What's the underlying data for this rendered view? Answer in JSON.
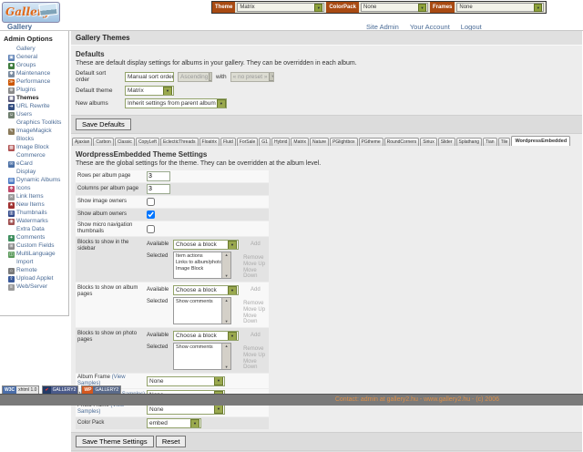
{
  "header": {
    "logo_text": "Gallery",
    "theme_bar": {
      "theme_label": "Theme",
      "theme_value": "Matrix",
      "colorpack_label": "ColorPack",
      "colorpack_value": "None",
      "frames_label": "Frames",
      "frames_value": "None"
    },
    "breadcrumb": "Gallery",
    "links": [
      "Site Admin",
      "Your Account",
      "Logout"
    ]
  },
  "sidebar": {
    "title": "Admin Options",
    "entries": [
      {
        "t": "g",
        "label": "Gallery",
        "name": "sidebar-group-gallery",
        "inter": "false"
      },
      {
        "t": "i",
        "label": "General",
        "name": "sidebar-item-general",
        "icon": "general-icon",
        "glyph": "▣",
        "color": "#5b7fb4",
        "inter": "true"
      },
      {
        "t": "i",
        "label": "Groups",
        "name": "sidebar-item-groups",
        "icon": "groups-icon",
        "glyph": "☻",
        "color": "#3f7d3f",
        "inter": "true"
      },
      {
        "t": "i",
        "label": "Maintenance",
        "name": "sidebar-item-maintenance",
        "icon": "maintenance-icon",
        "glyph": "✱",
        "color": "#7a8ba0",
        "inter": "true"
      },
      {
        "t": "i",
        "label": "Performance",
        "name": "sidebar-item-performance",
        "icon": "performance-icon",
        "glyph": "≫",
        "color": "#cc5500",
        "inter": "true"
      },
      {
        "t": "i",
        "label": "Plugins",
        "name": "sidebar-item-plugins",
        "icon": "plugins-icon",
        "glyph": "⊕",
        "color": "#8a8a8a",
        "inter": "true"
      },
      {
        "t": "i",
        "label": "Themes",
        "name": "sidebar-item-themes",
        "icon": "themes-icon",
        "glyph": "▦",
        "color": "#555577",
        "active": true,
        "inter": "true"
      },
      {
        "t": "i",
        "label": "URL Rewrite",
        "name": "sidebar-item-url-rewrite",
        "icon": "url-rewrite-icon",
        "glyph": "➔",
        "color": "#334d80",
        "inter": "true"
      },
      {
        "t": "i",
        "label": "Users",
        "name": "sidebar-item-users",
        "icon": "users-icon",
        "glyph": "☺",
        "color": "#6f7f6f",
        "inter": "true"
      },
      {
        "t": "g",
        "label": "Graphics Toolkits",
        "name": "sidebar-group-graphics-toolkits",
        "inter": "false"
      },
      {
        "t": "i",
        "label": "ImageMagick",
        "name": "sidebar-item-imagemagick",
        "icon": "imagemagick-icon",
        "glyph": "✎",
        "color": "#8a7a5a",
        "inter": "true"
      },
      {
        "t": "g",
        "label": "Blocks",
        "name": "sidebar-group-blocks",
        "inter": "false"
      },
      {
        "t": "i",
        "label": "Image Block",
        "name": "sidebar-item-image-block",
        "icon": "image-block-icon",
        "glyph": "▩",
        "color": "#b05050",
        "inter": "true"
      },
      {
        "t": "g",
        "label": "Commerce",
        "name": "sidebar-group-commerce",
        "inter": "false"
      },
      {
        "t": "i",
        "label": "eCard",
        "name": "sidebar-item-ecard",
        "icon": "ecard-icon",
        "glyph": "✉",
        "color": "#4a6fa5",
        "inter": "true"
      },
      {
        "t": "g",
        "label": "Display",
        "name": "sidebar-group-display",
        "inter": "false"
      },
      {
        "t": "i",
        "label": "Dynamic Albums",
        "name": "sidebar-item-dynamic-albums",
        "icon": "dynamic-albums-icon",
        "glyph": "▤",
        "color": "#4a79c4",
        "inter": "true"
      },
      {
        "t": "i",
        "label": "Icons",
        "name": "sidebar-item-icons",
        "icon": "icons-icon",
        "glyph": "❖",
        "color": "#c04a6a",
        "inter": "true"
      },
      {
        "t": "i",
        "label": "Link Items",
        "name": "sidebar-item-link-items",
        "icon": "link-items-icon",
        "glyph": "∞",
        "color": "#9a9a9a",
        "inter": "true"
      },
      {
        "t": "i",
        "label": "New Items",
        "name": "sidebar-item-new-items",
        "icon": "new-items-icon",
        "glyph": "★",
        "color": "#a03030",
        "inter": "true"
      },
      {
        "t": "i",
        "label": "Thumbnails",
        "name": "sidebar-item-thumbnails",
        "icon": "thumbnails-icon",
        "glyph": "▥",
        "color": "#30488a",
        "inter": "true"
      },
      {
        "t": "i",
        "label": "Watermarks",
        "name": "sidebar-item-watermarks",
        "icon": "watermarks-icon",
        "glyph": "◉",
        "color": "#a05050",
        "inter": "true"
      },
      {
        "t": "g",
        "label": "Extra Data",
        "name": "sidebar-group-extra-data",
        "inter": "false"
      },
      {
        "t": "i",
        "label": "Comments",
        "name": "sidebar-item-comments",
        "icon": "comments-icon",
        "glyph": "✦",
        "color": "#3f8f5f",
        "inter": "true"
      },
      {
        "t": "i",
        "label": "Custom Fields",
        "name": "sidebar-item-custom-fields",
        "icon": "custom-fields-icon",
        "glyph": "⊞",
        "color": "#8a8a8a",
        "inter": "true"
      },
      {
        "t": "i",
        "label": "MultiLanguage",
        "name": "sidebar-item-multilanguage",
        "icon": "multilanguage-icon",
        "glyph": "◫",
        "color": "#5a9a5a",
        "inter": "true"
      },
      {
        "t": "g",
        "label": "Import",
        "name": "sidebar-group-import",
        "inter": "false"
      },
      {
        "t": "i",
        "label": "Remote",
        "name": "sidebar-item-remote",
        "icon": "remote-icon",
        "glyph": "⌂",
        "color": "#7a7a7a",
        "inter": "true"
      },
      {
        "t": "i",
        "label": "Upload Applet",
        "name": "sidebar-item-upload-applet",
        "icon": "upload-applet-icon",
        "glyph": "⇧",
        "color": "#3a5a9a",
        "inter": "true"
      },
      {
        "t": "i",
        "label": "Web/Server",
        "name": "sidebar-item-web-server",
        "icon": "web-server-icon",
        "glyph": "≡",
        "color": "#9a9a9a",
        "inter": "true"
      }
    ]
  },
  "main": {
    "page_title": "Gallery Themes",
    "defaults": {
      "title": "Defaults",
      "description": "These are default display settings for albums in your gallery. They can be overridden in each album.",
      "sort_label": "Default sort order",
      "sort_value": "Manual sort order",
      "sort_direction": "Ascending",
      "with_label": "with",
      "sort_preset": "« no preset »",
      "theme_label": "Default theme",
      "theme_value": "Matrix",
      "albums_label": "New albums",
      "albums_value": "Inherit settings from parent album",
      "save_button": "Save Defaults"
    },
    "tabs": [
      {
        "label": "Ajaxian",
        "name": "tab-ajaxian"
      },
      {
        "label": "Carbon",
        "name": "tab-carbon"
      },
      {
        "label": "Classic",
        "name": "tab-classic"
      },
      {
        "label": "CopyLeft",
        "name": "tab-copyleft"
      },
      {
        "label": "EclecticThreads",
        "name": "tab-eclecticthreads"
      },
      {
        "label": "Floatrix",
        "name": "tab-floatrix"
      },
      {
        "label": "Fluid",
        "name": "tab-fluid"
      },
      {
        "label": "ForSale",
        "name": "tab-forsale"
      },
      {
        "label": "G1",
        "name": "tab-g1"
      },
      {
        "label": "Hybrid",
        "name": "tab-hybrid"
      },
      {
        "label": "Matrix",
        "name": "tab-matrix"
      },
      {
        "label": "Nature",
        "name": "tab-nature"
      },
      {
        "label": "PGlightbox",
        "name": "tab-pglightbox"
      },
      {
        "label": "PGtheme",
        "name": "tab-pgtheme"
      },
      {
        "label": "RoundCorners",
        "name": "tab-roundcorners"
      },
      {
        "label": "Siriux",
        "name": "tab-siriux"
      },
      {
        "label": "Slider",
        "name": "tab-slider"
      },
      {
        "label": "Splathang",
        "name": "tab-splathang"
      },
      {
        "label": "Tian",
        "name": "tab-tian"
      },
      {
        "label": "Tile",
        "name": "tab-tile"
      },
      {
        "label": "WordpressEmbedded",
        "name": "tab-wordpressembedded",
        "active": true
      }
    ],
    "settings": {
      "title": "WordpressEmbedded Theme Settings",
      "description": "These are the global settings for the theme. They can be overridden at the album level.",
      "rows_label": "Rows per album page",
      "rows_value": "3",
      "cols_label": "Columns per album page",
      "cols_value": "3",
      "img_owners_label": "Show image owners",
      "img_owners_checked": false,
      "album_owners_label": "Show album owners",
      "album_owners_checked": true,
      "micro_label": "Show micro navigation thumbnails",
      "micro_checked": false,
      "available_label": "Available",
      "selected_label": "Selected",
      "choose_value": "Choose a block",
      "add_label": "Add",
      "remove_label": "Remove",
      "move_up_label": "Move Up",
      "move_down_label": "Move Down",
      "blocks_sidebar": {
        "label": "Blocks to show in the sidebar",
        "items": [
          "Item actions",
          "Links to album/photo peers",
          "Image Block"
        ]
      },
      "blocks_album": {
        "label": "Blocks to show on album pages",
        "items": [
          "Show comments"
        ]
      },
      "blocks_photo": {
        "label": "Blocks to show on photo pages",
        "items": [
          "Show comments"
        ]
      },
      "frames": [
        {
          "label": "Album Frame",
          "link": "(View Samples)",
          "value": "None",
          "name": "album-frame-select"
        },
        {
          "label": "Item Frame",
          "link": "(View Samples)",
          "value": "None",
          "name": "item-frame-select"
        },
        {
          "label": "Photo Frame",
          "link": "(View Samples)",
          "value": "None",
          "name": "photo-frame-select"
        }
      ],
      "colorpack_label": "Color Pack",
      "colorpack_value": "embed",
      "save_button": "Save Theme Settings",
      "reset_button": "Reset"
    }
  },
  "badges": [
    {
      "left": "W3C",
      "right": "xhtml 1.0"
    },
    {
      "left": "✔",
      "right": "GALLERY2"
    },
    {
      "left": "WP",
      "right": "GALLERY2"
    }
  ],
  "footer": {
    "text": "Contact: admin at gallery2.hu - www.gallery2.hu - (c) 2006"
  },
  "colors": {
    "accent_green": "#9aa94e",
    "link_blue": "#4a6b96",
    "toolbar_label_orange": "#a84a12"
  }
}
